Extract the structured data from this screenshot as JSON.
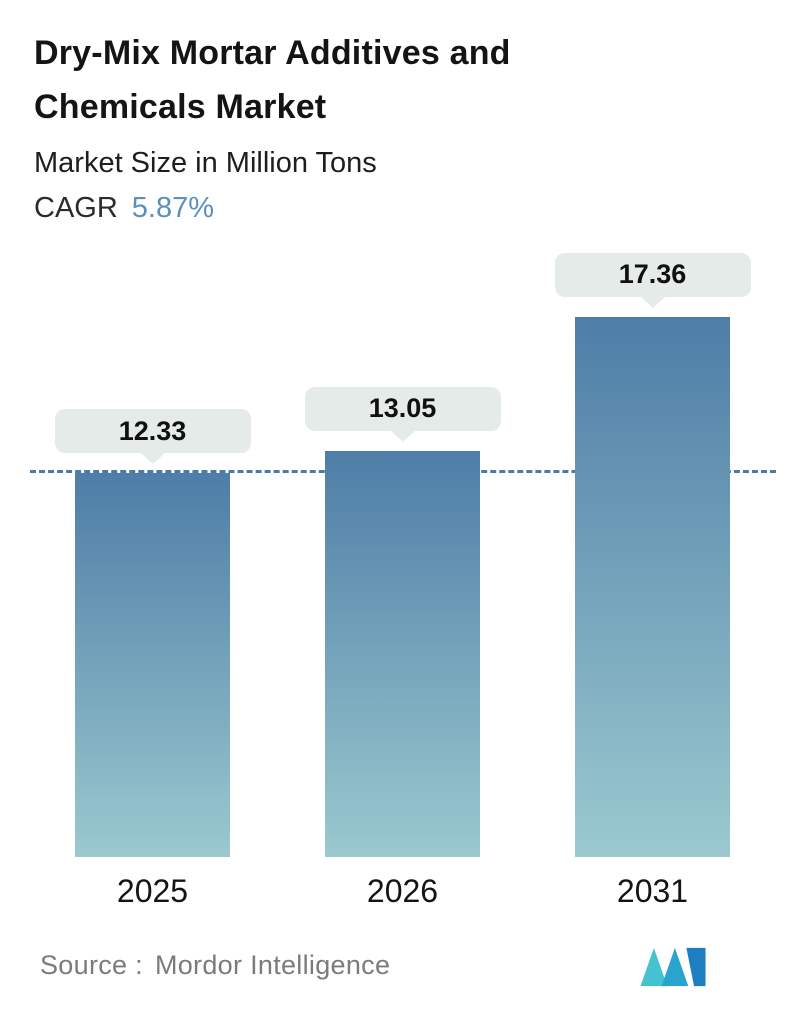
{
  "header": {
    "title": "Dry-Mix Mortar Additives and Chemicals Market",
    "subtitle": "Market Size in Million Tons",
    "cagr_label": "CAGR",
    "cagr_value": "5.87%"
  },
  "chart_data": {
    "type": "bar",
    "categories": [
      "2025",
      "2026",
      "2031"
    ],
    "values": [
      12.33,
      13.05,
      17.36
    ],
    "value_labels": [
      "12.33",
      "13.05",
      "17.36"
    ],
    "title": "Dry-Mix Mortar Additives and Chemicals Market",
    "subtitle": "Market Size in Million Tons",
    "unit": "Million Tons",
    "cagr": "5.87%",
    "ylim": [
      0,
      17.36
    ],
    "grid": false,
    "legend_position": "none",
    "dashed_reference_line_at": 12.33,
    "dashed_line_color": "#4a7ba6",
    "bar_gradient_top": "#4e7da7",
    "bar_gradient_bottom": "#9bc9cf",
    "callout_bg": "#e4ebe8"
  },
  "footer": {
    "source_label": "Source :",
    "source_value": "Mordor Intelligence",
    "logo_name": "mordor-intelligence-logo"
  },
  "colors": {
    "accent_blue": "#5b8fbe",
    "text_dark": "#141414",
    "source_gray": "#7b7b7b",
    "logo_teal": "#45c2cf",
    "logo_mid": "#2aa3cd",
    "logo_blue": "#1d7fc1"
  }
}
